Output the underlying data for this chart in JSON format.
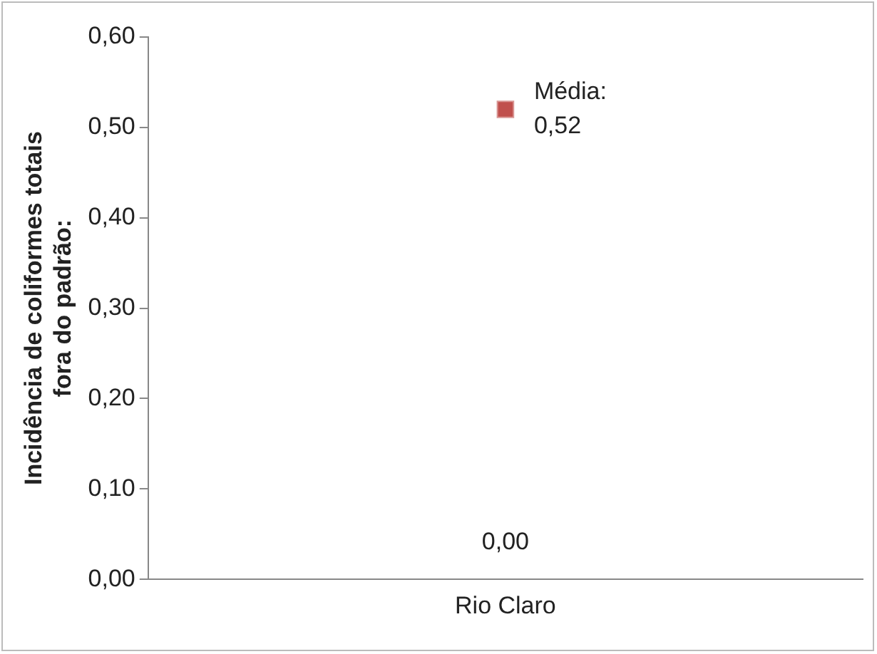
{
  "chart_data": {
    "type": "scatter",
    "ylabel": "Incidência de coliformes totais\nfora do padrão:",
    "categories": [
      "Rio Claro"
    ],
    "series": [
      {
        "color": "#c0504d",
        "values": [
          0.52
        ],
        "value_labels": [
          "Média:\n0,52"
        ]
      }
    ],
    "annotations": [
      "0,00"
    ],
    "ylim": [
      0,
      0.6
    ],
    "yticks": [
      {
        "value": 0,
        "label": "0,00"
      },
      {
        "value": 0.1,
        "label": "0,10"
      },
      {
        "value": 0.2,
        "label": "0,20"
      },
      {
        "value": 0.3,
        "label": "0,30"
      },
      {
        "value": 0.4,
        "label": "0,40"
      },
      {
        "value": 0.5,
        "label": "0,50"
      },
      {
        "value": 0.6,
        "label": "0,60"
      }
    ],
    "grid": false,
    "legend": false,
    "marker": "square"
  }
}
